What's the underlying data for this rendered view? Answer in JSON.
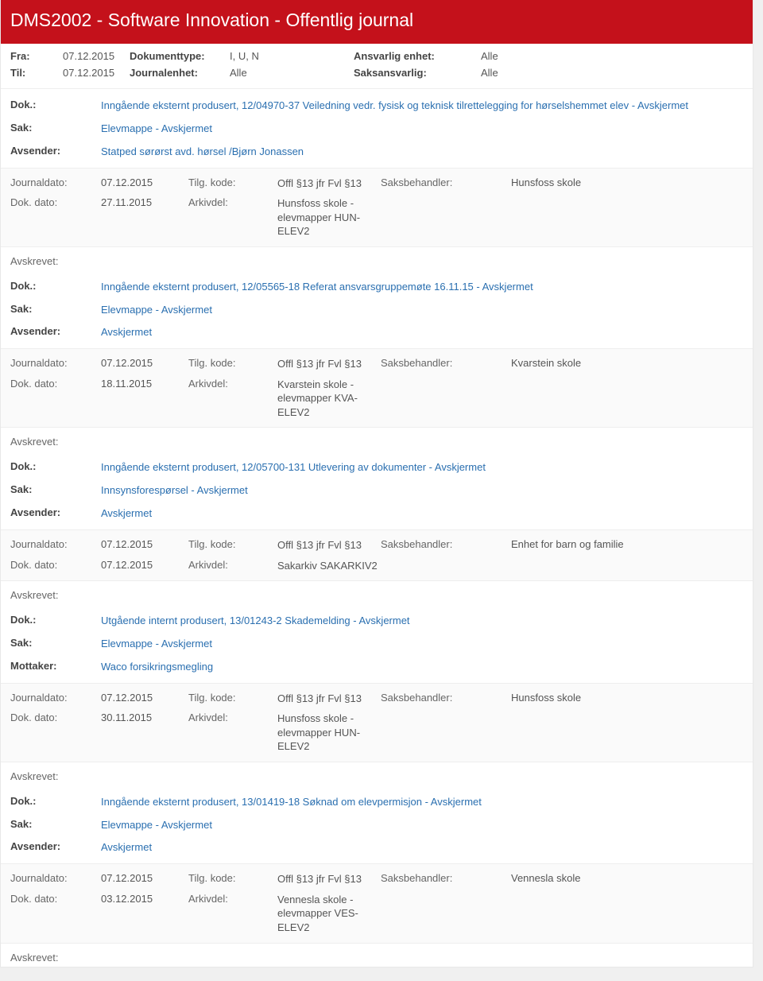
{
  "header": {
    "title": "DMS2002 - Software Innovation - Offentlig journal"
  },
  "filters": {
    "fra_label": "Fra:",
    "fra_val": "07.12.2015",
    "til_label": "Til:",
    "til_val": "07.12.2015",
    "doktype_label": "Dokumenttype:",
    "doktype_val": "I, U, N",
    "journalenhet_label": "Journalenhet:",
    "journalenhet_val": "Alle",
    "ansvarlig_label": "Ansvarlig enhet:",
    "ansvarlig_val": "Alle",
    "saksansvarlig_label": "Saksansvarlig:",
    "saksansvarlig_val": "Alle"
  },
  "labels": {
    "dok": "Dok.:",
    "sak": "Sak:",
    "avsender": "Avsender:",
    "mottaker": "Mottaker:",
    "journaldato": "Journaldato:",
    "dokdato": "Dok. dato:",
    "tilgkode": "Tilg. kode:",
    "arkivdel": "Arkivdel:",
    "saksbehandler": "Saksbehandler:",
    "avskrevet": "Avskrevet:"
  },
  "entries": [
    {
      "dok": "Inngående eksternt produsert, 12/04970-37 Veiledning vedr. fysisk og teknisk tilrettelegging for hørselshemmet elev - Avskjermet",
      "sak": "Elevmappe - Avskjermet",
      "party_label": "Avsender:",
      "party": "Statped sørørst avd. hørsel /Bjørn Jonassen",
      "journaldato": "07.12.2015",
      "tilgkode": "Offl §13 jfr Fvl §13",
      "saksbehandler": "Hunsfoss skole",
      "dokdato": "27.11.2015",
      "arkivdel": "Hunsfoss skole - elevmapper HUN-ELEV2"
    },
    {
      "dok": "Inngående eksternt produsert, 12/05565-18 Referat ansvarsgruppemøte 16.11.15 - Avskjermet",
      "sak": "Elevmappe - Avskjermet",
      "party_label": "Avsender:",
      "party": "Avskjermet",
      "journaldato": "07.12.2015",
      "tilgkode": "Offl §13 jfr Fvl §13",
      "saksbehandler": "Kvarstein skole",
      "dokdato": "18.11.2015",
      "arkivdel": "Kvarstein skole - elevmapper KVA-ELEV2"
    },
    {
      "dok": "Inngående eksternt produsert, 12/05700-131 Utlevering av dokumenter - Avskjermet",
      "sak": "Innsynsforespørsel - Avskjermet",
      "party_label": "Avsender:",
      "party": "Avskjermet",
      "journaldato": "07.12.2015",
      "tilgkode": "Offl §13 jfr Fvl §13",
      "saksbehandler": "Enhet for barn og familie",
      "dokdato": "07.12.2015",
      "arkivdel": "Sakarkiv SAKARKIV2"
    },
    {
      "dok": "Utgående internt produsert, 13/01243-2 Skademelding - Avskjermet",
      "sak": "Elevmappe - Avskjermet",
      "party_label": "Mottaker:",
      "party": "Waco forsikringsmegling",
      "journaldato": "07.12.2015",
      "tilgkode": "Offl §13 jfr Fvl §13",
      "saksbehandler": "Hunsfoss skole",
      "dokdato": "30.11.2015",
      "arkivdel": "Hunsfoss skole - elevmapper HUN-ELEV2"
    },
    {
      "dok": "Inngående eksternt produsert, 13/01419-18 Søknad om elevpermisjon - Avskjermet",
      "sak": "Elevmappe - Avskjermet",
      "party_label": "Avsender:",
      "party": "Avskjermet",
      "journaldato": "07.12.2015",
      "tilgkode": "Offl §13 jfr Fvl §13",
      "saksbehandler": "Vennesla skole",
      "dokdato": "03.12.2015",
      "arkivdel": "Vennesla skole - elevmapper VES-ELEV2"
    }
  ]
}
